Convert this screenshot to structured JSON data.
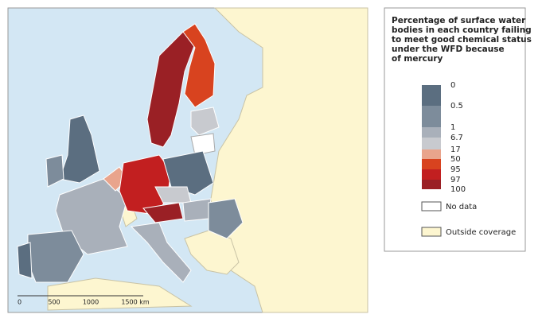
{
  "map": {
    "scale_bar": [
      "0",
      "500",
      "1000",
      "1500 km"
    ]
  },
  "legend": {
    "title": [
      "Percentage of surface water",
      "bodies in each country failing",
      "to meet good chemical status",
      "under the WFD because",
      "of mercury"
    ],
    "ticks": [
      0,
      0.5,
      1,
      6.7,
      17,
      50,
      95,
      97,
      100
    ],
    "colors": [
      "#5b6e80",
      "#7d8c9b",
      "#a9b0ba",
      "#c8cacf",
      "#e9a48c",
      "#d8431f",
      "#c21f20",
      "#9a2025"
    ],
    "no_data": "No data",
    "outside": "Outside coverage"
  }
}
